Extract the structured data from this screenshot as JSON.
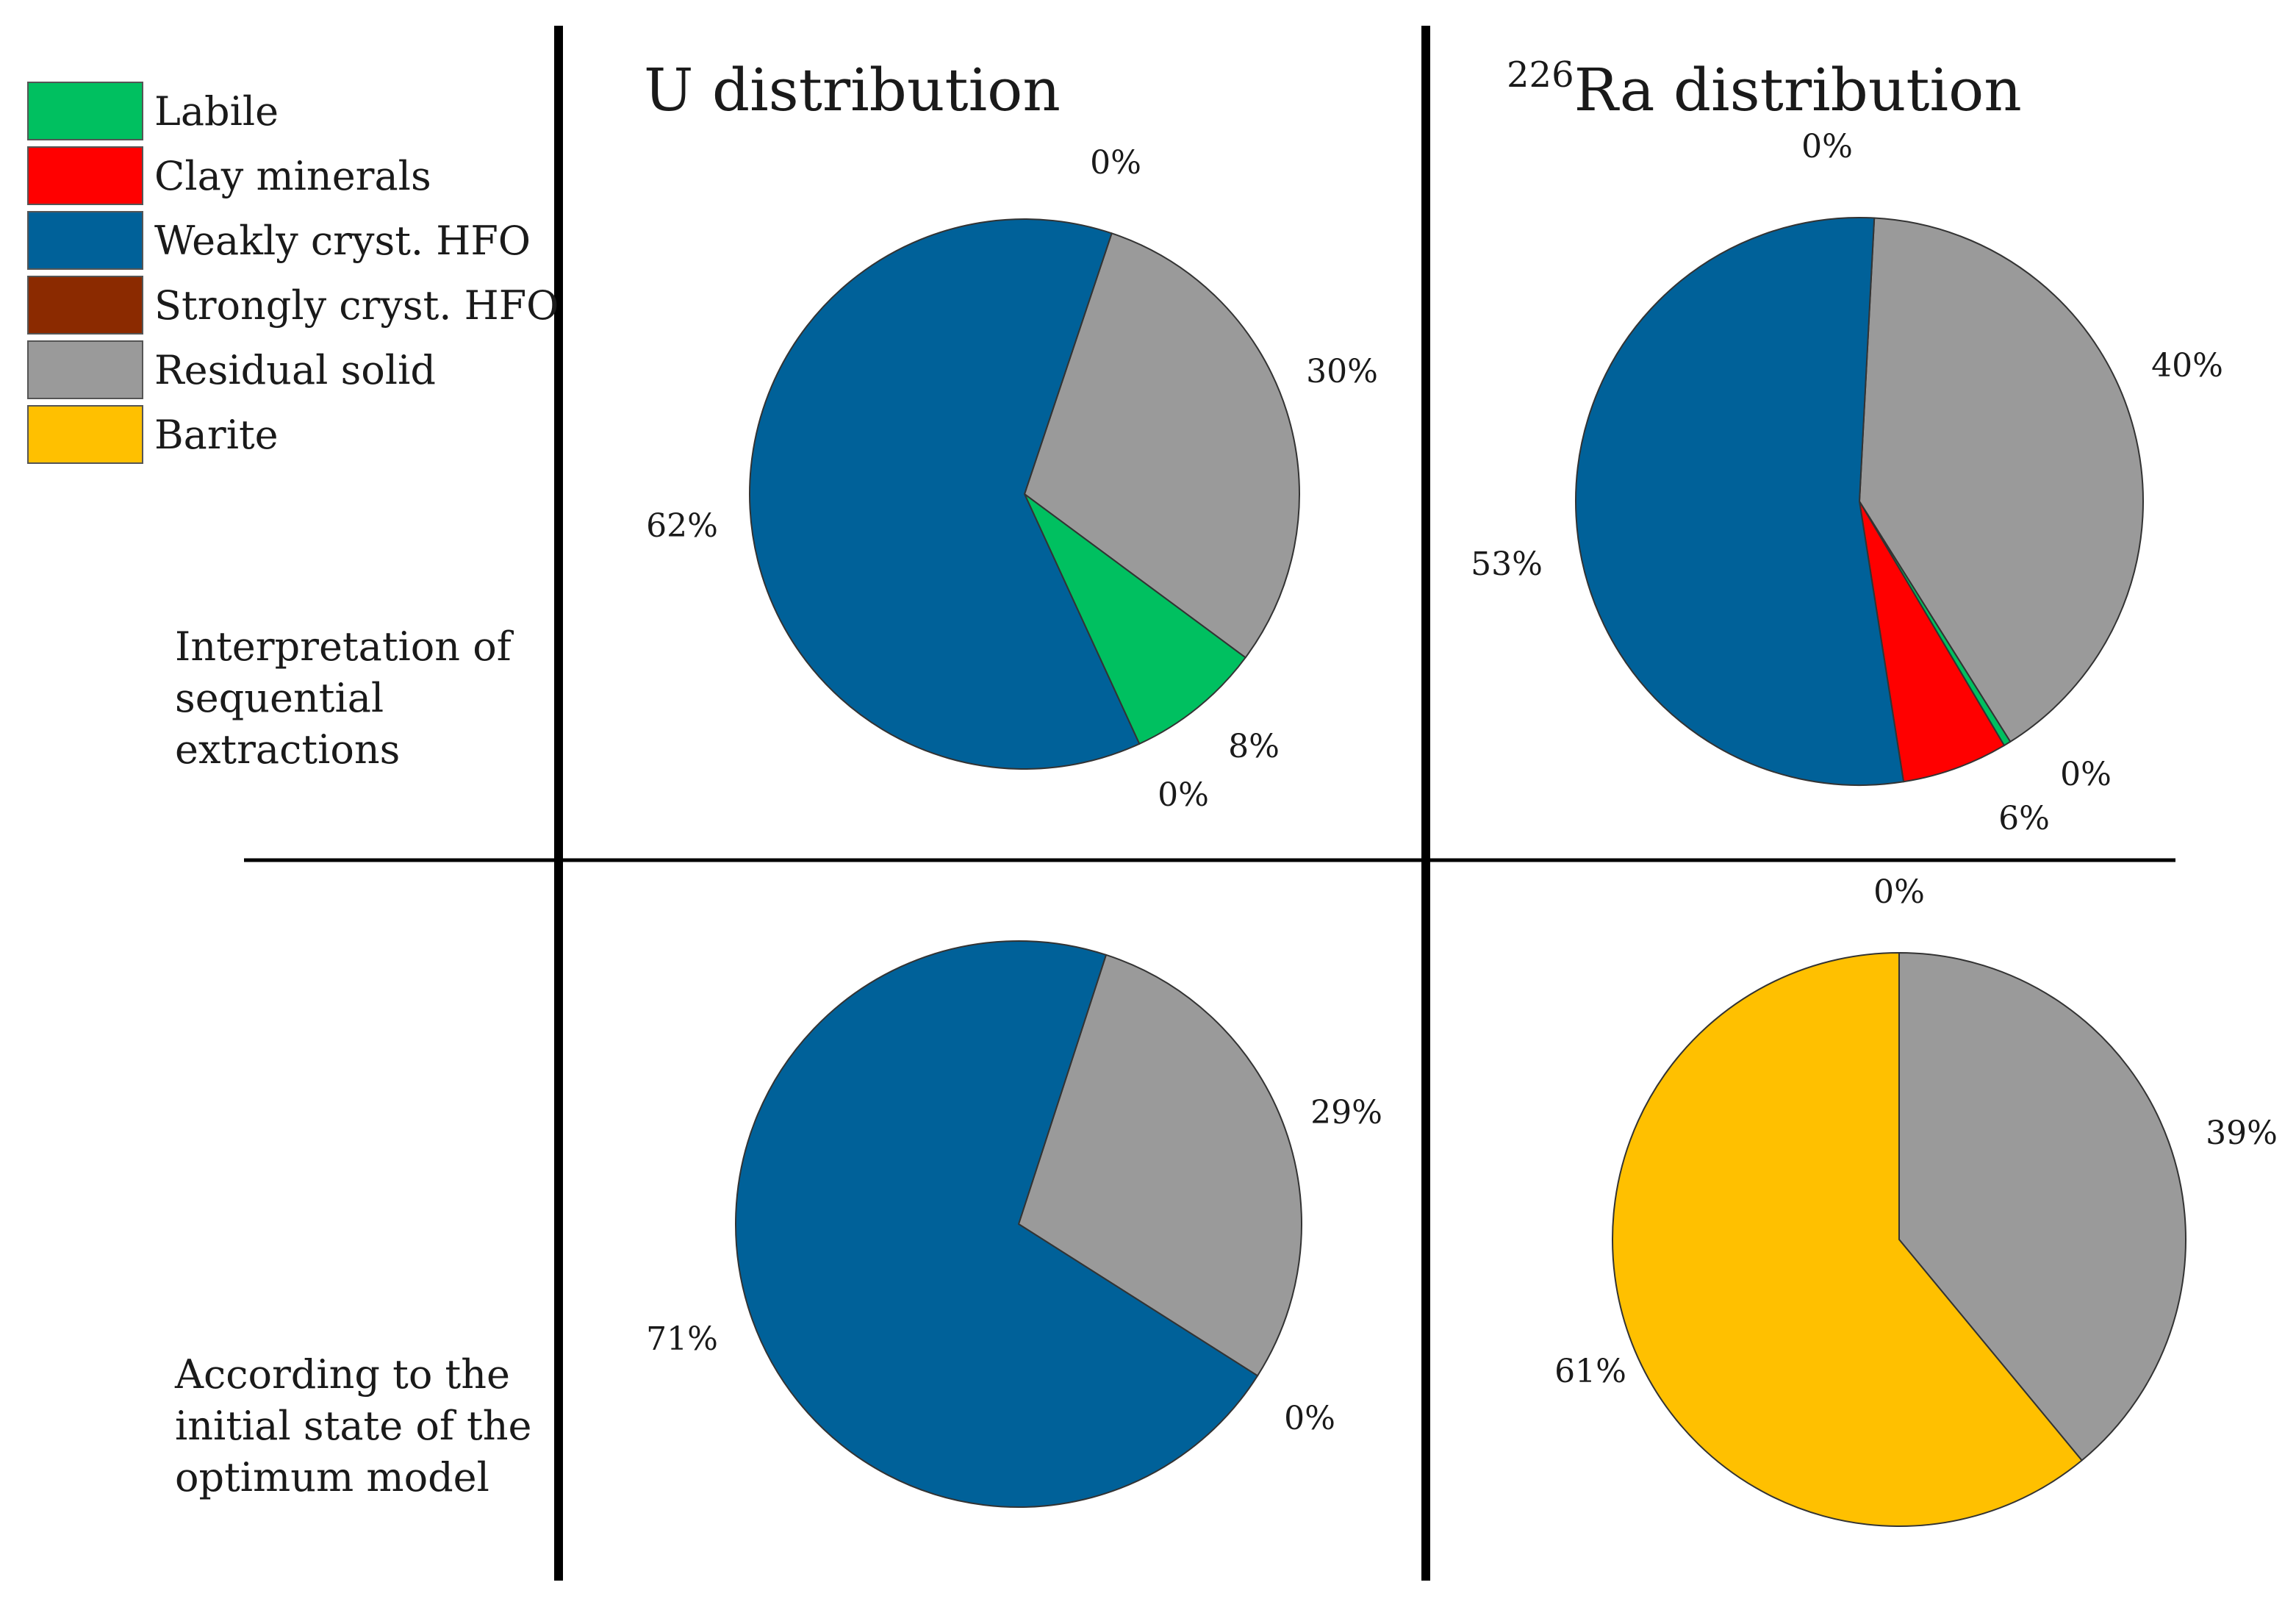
{
  "colors": {
    "Labile": "#00c060",
    "Clay minerals": "#ff0000",
    "Weakly cryst. HFO": "#006199",
    "Strongly cryst. HFO": "#8b2a00",
    "Residual solid": "#9a9a9a",
    "Barite": "#ffc000"
  },
  "legend": [
    "Labile",
    "Clay minerals",
    "Weakly cryst. HFO",
    "Strongly cryst. HFO",
    "Residual solid",
    "Barite"
  ],
  "columns": {
    "u_title": "U distribution",
    "ra_sup": "226",
    "ra_title": "Ra distribution"
  },
  "rows": {
    "row1": [
      "Interpretation of",
      "sequential",
      "extractions"
    ],
    "row2": [
      "According to the",
      "initial state of the",
      "optimum model"
    ]
  },
  "chart_data": [
    {
      "type": "pie",
      "id": "u_seq",
      "title": "U distribution",
      "slices": [
        {
          "label": "Residual solid",
          "value": 30,
          "text": "30%"
        },
        {
          "label": "Labile",
          "value": 8,
          "text": "8%"
        },
        {
          "label": "Strongly cryst. HFO",
          "value": 0,
          "text": "0%"
        },
        {
          "label": "Weakly cryst. HFO",
          "value": 62,
          "text": "62%"
        },
        {
          "label": "Clay minerals",
          "value": 0,
          "text": "0%"
        }
      ]
    },
    {
      "type": "pie",
      "id": "ra_seq",
      "title": "226Ra distribution",
      "slices": [
        {
          "label": "Residual solid",
          "value": 40,
          "text": "40%"
        },
        {
          "label": "Labile",
          "value": 0.4,
          "text": "0%"
        },
        {
          "label": "Clay minerals",
          "value": 6,
          "text": "6%"
        },
        {
          "label": "Weakly cryst. HFO",
          "value": 53,
          "text": "53%"
        },
        {
          "label": "Strongly cryst. HFO",
          "value": 0,
          "text": "0%"
        }
      ]
    },
    {
      "type": "pie",
      "id": "u_model",
      "title": "U distribution",
      "slices": [
        {
          "label": "Residual solid",
          "value": 29,
          "text": "29%"
        },
        {
          "label": "Strongly cryst. HFO",
          "value": 0,
          "text": "0%"
        },
        {
          "label": "Weakly cryst. HFO",
          "value": 71,
          "text": "71%"
        }
      ]
    },
    {
      "type": "pie",
      "id": "ra_model",
      "title": "226Ra distribution",
      "slices": [
        {
          "label": "Residual solid",
          "value": 39,
          "text": "39%"
        },
        {
          "label": "Barite",
          "value": 61,
          "text": "61%"
        },
        {
          "label": "Clay minerals",
          "value": 0,
          "text": "0%"
        }
      ]
    }
  ]
}
